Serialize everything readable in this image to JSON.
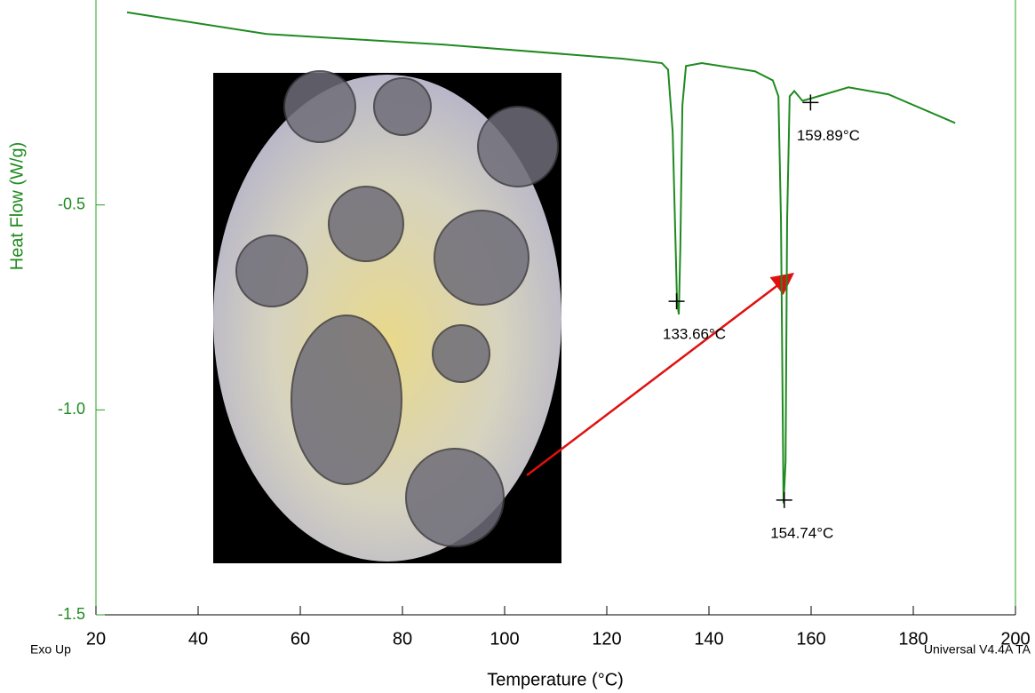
{
  "chart_data": {
    "type": "line",
    "xlabel": "Temperature (°C)",
    "ylabel": "Heat Flow (W/g)",
    "footer_left": "Exo Up",
    "footer_right": "Universal V4.4A TA",
    "x": [
      26.09,
      53.4,
      88.2,
      123.0,
      130.8,
      132.0,
      132.9,
      133.75,
      134.1,
      134.4,
      134.8,
      135.5,
      138.6,
      149.0,
      152.5,
      153.6,
      154.1,
      154.6,
      155.0,
      155.3,
      155.8,
      156.7,
      158.3,
      160.3,
      167.3,
      175.1,
      188.2
    ],
    "series": [
      {
        "color": "#1f8a1f",
        "values": [
          -0.03,
          -0.083,
          -0.109,
          -0.143,
          -0.154,
          -0.17,
          -0.322,
          -0.735,
          -0.767,
          -0.604,
          -0.257,
          -0.161,
          -0.154,
          -0.174,
          -0.196,
          -0.235,
          -0.539,
          -1.228,
          -1.126,
          -0.539,
          -0.235,
          -0.222,
          -0.246,
          -0.239,
          -0.213,
          -0.23,
          -0.3
        ]
      }
    ],
    "annotations": [
      {
        "text": "133.66°C",
        "x": 133.66,
        "y": -0.735
      },
      {
        "text": "154.74°C",
        "x": 154.74,
        "y": -1.22
      },
      {
        "text": "159.89°C",
        "x": 159.89,
        "y": -0.25
      }
    ],
    "xlim": [
      20,
      200
    ],
    "ylim": [
      -1.5,
      0.0
    ],
    "xticks": [
      20,
      40,
      60,
      80,
      100,
      120,
      140,
      160,
      180,
      200
    ],
    "yticks": [
      -1.5,
      {
        "value": -1,
        "label": "-1.0"
      },
      -0.5
    ]
  }
}
